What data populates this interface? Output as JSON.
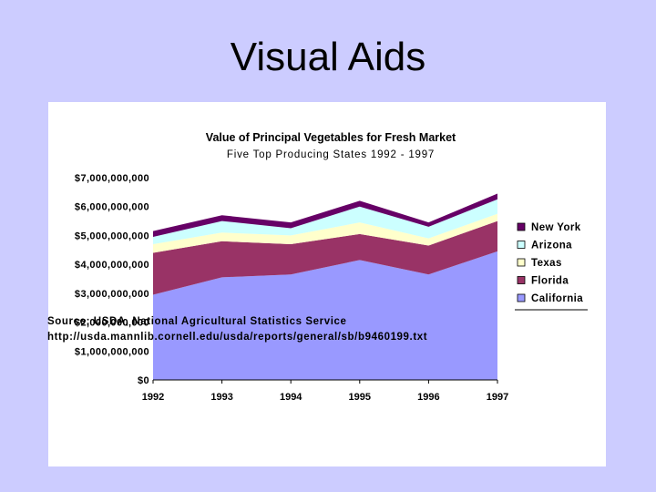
{
  "slide": {
    "title": "Visual Aids"
  },
  "colors": {
    "slide_bg": "#ccccff",
    "california": "#9999ff",
    "florida": "#993366",
    "texas": "#ffffcc",
    "arizona": "#ccffff",
    "new_york": "#660066"
  },
  "chart_data": {
    "type": "area",
    "stacked": true,
    "title": "Value of Principal Vegetables for Fresh Market",
    "subtitle": "Five Top Producing States 1992 - 1997",
    "categories": [
      "1992",
      "1993",
      "1994",
      "1995",
      "1996",
      "1997"
    ],
    "y_tick_labels": [
      "$0",
      "$1,000,000,000",
      "$2,000,000,000",
      "$3,000,000,000",
      "$4,000,000,000",
      "$5,000,000,000",
      "$6,000,000,000",
      "$7,000,000,000"
    ],
    "ylim": [
      0,
      7000000000
    ],
    "legend_position": "right",
    "series": [
      {
        "name": "California",
        "color": "#9999ff",
        "values": [
          2950000000,
          3550000000,
          3650000000,
          4150000000,
          3650000000,
          4450000000
        ]
      },
      {
        "name": "Florida",
        "color": "#993366",
        "values": [
          1450000000,
          1250000000,
          1050000000,
          900000000,
          1000000000,
          1050000000
        ]
      },
      {
        "name": "Texas",
        "color": "#ffffcc",
        "values": [
          300000000,
          300000000,
          300000000,
          400000000,
          250000000,
          250000000
        ]
      },
      {
        "name": "Arizona",
        "color": "#ccffff",
        "values": [
          250000000,
          400000000,
          250000000,
          550000000,
          400000000,
          500000000
        ]
      },
      {
        "name": "New York",
        "color": "#660066",
        "values": [
          200000000,
          200000000,
          200000000,
          200000000,
          150000000,
          200000000
        ]
      }
    ],
    "source_line1": "Source:  USDA, National Agricultural Statistics Service",
    "source_line2": "http://usda.mannlib.cornell.edu/usda/reports/general/sb/b9460199.txt"
  }
}
